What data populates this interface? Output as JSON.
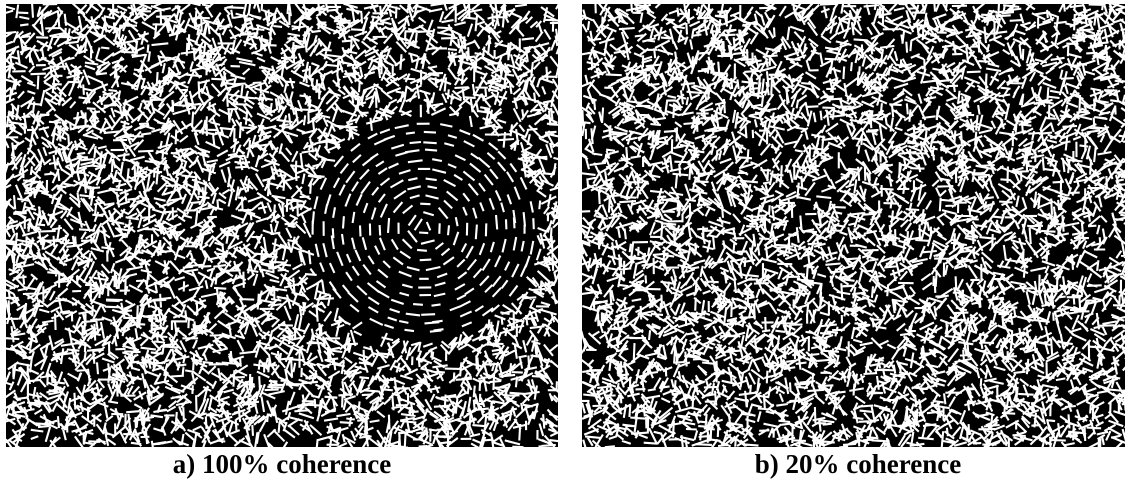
{
  "panels": [
    {
      "id": "a",
      "caption": "a) 100% coherence",
      "coherence_percent": 100
    },
    {
      "id": "b",
      "caption": "b) 20% coherence",
      "coherence_percent": 20
    }
  ],
  "colors": {
    "background": "#000000",
    "segment": "#ffffff",
    "page": "#ffffff",
    "caption_text": "#000000"
  }
}
